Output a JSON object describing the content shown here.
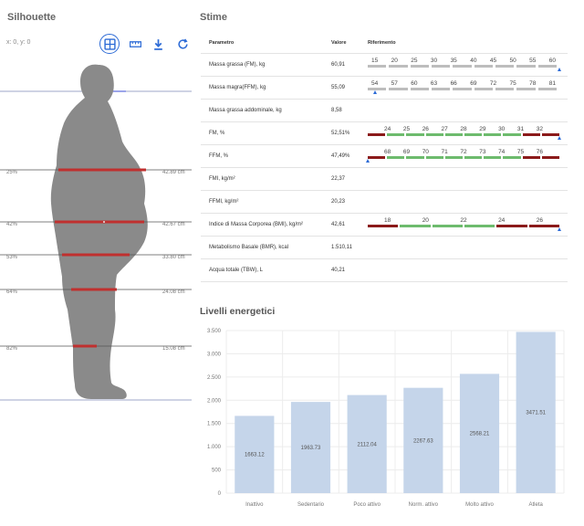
{
  "silhouette": {
    "title": "Silhouette",
    "coords": "x: 0, y: 0",
    "measurements": [
      {
        "pct": "25%",
        "value": "42.89 cm"
      },
      {
        "pct": "42%",
        "value": "42.67 cm"
      },
      {
        "pct": "53%",
        "value": "33.80 cm"
      },
      {
        "pct": "64%",
        "value": "24.08 cm"
      },
      {
        "pct": "82%",
        "value": "15.08 cm"
      }
    ]
  },
  "stime": {
    "title": "Stime",
    "headers": {
      "param": "Parametro",
      "value": "Valore",
      "ref": "Riferimento"
    },
    "rows": [
      {
        "param": "Massa grassa (FM), kg",
        "value": "60,91",
        "ticks": [
          "15",
          "20",
          "25",
          "30",
          "35",
          "40",
          "45",
          "50",
          "55",
          "60"
        ],
        "scale": "gray",
        "marker": 1.0
      },
      {
        "param": "Massa magra(FFM), kg",
        "value": "55,09",
        "ticks": [
          "54",
          "57",
          "60",
          "63",
          "66",
          "69",
          "72",
          "75",
          "78",
          "81"
        ],
        "scale": "gray",
        "marker": 0.04
      },
      {
        "param": "Massa grassa addominale, kg",
        "value": "8,58",
        "ticks": [],
        "scale": "none"
      },
      {
        "param": "FM, %",
        "value": "52,51%",
        "ticks": [
          "24",
          "25",
          "26",
          "27",
          "28",
          "29",
          "30",
          "31",
          "32"
        ],
        "scale": "rgr",
        "marker": 1.0
      },
      {
        "param": "FFM, %",
        "value": "47,49%",
        "ticks": [
          "68",
          "69",
          "70",
          "71",
          "72",
          "73",
          "74",
          "75",
          "76"
        ],
        "scale": "rgr",
        "marker": 0.0
      },
      {
        "param": "FMI, kg/m²",
        "value": "22,37",
        "ticks": [],
        "scale": "none"
      },
      {
        "param": "FFMI, kg/m²",
        "value": "20,23",
        "ticks": [],
        "scale": "none"
      },
      {
        "param": "Indice di Massa Corporea (BMI), kg/m²",
        "value": "42,61",
        "ticks": [
          "18",
          "20",
          "22",
          "24",
          "26"
        ],
        "scale": "rgr",
        "marker": 1.0
      },
      {
        "param": "Metabolismo Basale (BMR), kcal",
        "value": "1.510,11",
        "ticks": [],
        "scale": "none"
      },
      {
        "param": "Acqua totale (TBW), L",
        "value": "40,21",
        "ticks": [],
        "scale": "none"
      }
    ]
  },
  "colors": {
    "accent": "#2d6bd6",
    "bar": "#c5d5ea",
    "silhouette": "#8a8a8a",
    "red": "#8b1a1a",
    "green": "#6dbb6d",
    "scale_gray": "#bdbdbd"
  },
  "icons": [
    "grid-icon",
    "ruler-icon",
    "download-icon",
    "refresh-icon"
  ],
  "chart_data": {
    "type": "bar",
    "title": "Livelli energetici",
    "categories": [
      "Inattivo",
      "Sedentario",
      "Poco attivo",
      "Norm. attivo",
      "Molto attivo",
      "Atleta"
    ],
    "values": [
      1663.12,
      1963.73,
      2112.04,
      2267.63,
      2568.21,
      3471.51
    ],
    "value_labels": [
      "1663.12",
      "1963.73",
      "2112.04",
      "2267.63",
      "2568.21",
      "3471.51"
    ],
    "ylim": [
      0,
      3500
    ],
    "yticks": [
      0,
      500,
      1000,
      1500,
      2000,
      2500,
      3000,
      3500
    ],
    "ytick_labels": [
      "0",
      "500",
      "1.000",
      "1.500",
      "2.000",
      "2.500",
      "3.000",
      "3.500"
    ],
    "grid": true
  }
}
